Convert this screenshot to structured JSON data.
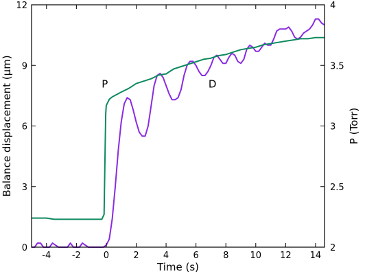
{
  "chart_data": {
    "type": "line",
    "title": "",
    "xlabel": "Time (s)",
    "ylabel": "Balance displacement (µm)",
    "y2label": "P (Torr)",
    "xlim": [
      -5,
      14.6
    ],
    "ylim": [
      0,
      12
    ],
    "y2lim": [
      2,
      4
    ],
    "x_ticks": [
      -4,
      -2,
      0,
      2,
      4,
      6,
      8,
      10,
      12,
      14
    ],
    "x_tick_labels": [
      "-4",
      "-2",
      "0",
      "2",
      "4",
      "6",
      "8",
      "10",
      "12",
      "14"
    ],
    "y_ticks": [
      0,
      3,
      6,
      9,
      12
    ],
    "y_tick_labels": [
      "0",
      "3",
      "6",
      "9",
      "12"
    ],
    "y2_ticks": [
      2,
      2.5,
      3,
      3.5,
      4
    ],
    "y2_tick_labels": [
      "2",
      "2.5",
      "3",
      "3.5",
      "4"
    ],
    "grid": false,
    "annotations": [
      {
        "text": "P",
        "x": -0.1,
        "y": 7.9
      },
      {
        "text": "D",
        "x": 7.1,
        "y": 7.9
      }
    ],
    "series": [
      {
        "name": "",
        "axis": "left",
        "color": "#8a2be2",
        "points": [
          [
            -5.0,
            0.0
          ],
          [
            -4.8,
            0.0
          ],
          [
            -4.6,
            0.2
          ],
          [
            -4.4,
            0.2
          ],
          [
            -4.2,
            0.0
          ],
          [
            -3.8,
            0.0
          ],
          [
            -3.6,
            0.2
          ],
          [
            -3.4,
            0.1
          ],
          [
            -3.2,
            0.0
          ],
          [
            -2.6,
            0.0
          ],
          [
            -2.4,
            0.2
          ],
          [
            -2.2,
            0.0
          ],
          [
            -1.8,
            0.0
          ],
          [
            -1.6,
            0.2
          ],
          [
            -1.4,
            0.1
          ],
          [
            -1.2,
            0.0
          ],
          [
            -0.4,
            0.0
          ],
          [
            -0.2,
            0.0
          ],
          [
            0.0,
            0.1
          ],
          [
            0.2,
            0.4
          ],
          [
            0.4,
            1.4
          ],
          [
            0.6,
            3.0
          ],
          [
            0.8,
            4.8
          ],
          [
            1.0,
            6.2
          ],
          [
            1.2,
            7.1
          ],
          [
            1.4,
            7.4
          ],
          [
            1.6,
            7.3
          ],
          [
            1.8,
            6.8
          ],
          [
            2.0,
            6.2
          ],
          [
            2.2,
            5.7
          ],
          [
            2.4,
            5.5
          ],
          [
            2.6,
            5.5
          ],
          [
            2.8,
            6.0
          ],
          [
            3.0,
            7.0
          ],
          [
            3.2,
            8.0
          ],
          [
            3.4,
            8.5
          ],
          [
            3.6,
            8.6
          ],
          [
            3.8,
            8.4
          ],
          [
            4.0,
            8.0
          ],
          [
            4.2,
            7.6
          ],
          [
            4.4,
            7.3
          ],
          [
            4.6,
            7.3
          ],
          [
            4.8,
            7.4
          ],
          [
            5.0,
            7.8
          ],
          [
            5.2,
            8.5
          ],
          [
            5.4,
            9.0
          ],
          [
            5.6,
            9.2
          ],
          [
            5.8,
            9.2
          ],
          [
            6.0,
            9.0
          ],
          [
            6.2,
            8.7
          ],
          [
            6.4,
            8.5
          ],
          [
            6.6,
            8.5
          ],
          [
            6.8,
            8.7
          ],
          [
            7.0,
            9.0
          ],
          [
            7.2,
            9.4
          ],
          [
            7.4,
            9.5
          ],
          [
            7.6,
            9.3
          ],
          [
            7.8,
            9.1
          ],
          [
            8.0,
            9.1
          ],
          [
            8.2,
            9.4
          ],
          [
            8.4,
            9.6
          ],
          [
            8.6,
            9.5
          ],
          [
            8.8,
            9.2
          ],
          [
            9.0,
            9.1
          ],
          [
            9.2,
            9.3
          ],
          [
            9.4,
            9.8
          ],
          [
            9.6,
            10.0
          ],
          [
            9.8,
            9.9
          ],
          [
            10.0,
            9.7
          ],
          [
            10.2,
            9.7
          ],
          [
            10.4,
            9.9
          ],
          [
            10.6,
            10.1
          ],
          [
            10.8,
            10.0
          ],
          [
            11.0,
            10.0
          ],
          [
            11.2,
            10.3
          ],
          [
            11.4,
            10.7
          ],
          [
            11.6,
            10.8
          ],
          [
            12.0,
            10.8
          ],
          [
            12.2,
            10.9
          ],
          [
            12.4,
            10.7
          ],
          [
            12.6,
            10.4
          ],
          [
            12.8,
            10.3
          ],
          [
            13.0,
            10.4
          ],
          [
            13.2,
            10.6
          ],
          [
            13.4,
            10.7
          ],
          [
            13.6,
            10.8
          ],
          [
            13.8,
            11.0
          ],
          [
            14.0,
            11.3
          ],
          [
            14.2,
            11.3
          ],
          [
            14.4,
            11.1
          ],
          [
            14.6,
            11.0
          ]
        ]
      },
      {
        "name": "",
        "axis": "right",
        "color": "#0e8a5f",
        "points": [
          [
            -5.0,
            2.24
          ],
          [
            -4.0,
            2.24
          ],
          [
            -3.5,
            2.23
          ],
          [
            -3.0,
            2.23
          ],
          [
            -2.0,
            2.23
          ],
          [
            -1.0,
            2.23
          ],
          [
            -0.3,
            2.23
          ],
          [
            -0.15,
            2.27
          ],
          [
            -0.08,
            2.8
          ],
          [
            -0.04,
            3.1
          ],
          [
            0.0,
            3.17
          ],
          [
            0.2,
            3.22
          ],
          [
            0.4,
            3.24
          ],
          [
            0.7,
            3.26
          ],
          [
            1.0,
            3.28
          ],
          [
            1.5,
            3.31
          ],
          [
            2.0,
            3.35
          ],
          [
            2.5,
            3.37
          ],
          [
            3.0,
            3.39
          ],
          [
            3.5,
            3.42
          ],
          [
            4.0,
            3.43
          ],
          [
            4.5,
            3.47
          ],
          [
            5.0,
            3.49
          ],
          [
            5.5,
            3.51
          ],
          [
            6.0,
            3.53
          ],
          [
            6.5,
            3.55
          ],
          [
            7.0,
            3.56
          ],
          [
            7.5,
            3.58
          ],
          [
            8.0,
            3.59
          ],
          [
            8.5,
            3.61
          ],
          [
            9.0,
            3.63
          ],
          [
            9.5,
            3.64
          ],
          [
            10.0,
            3.65
          ],
          [
            10.5,
            3.67
          ],
          [
            11.0,
            3.68
          ],
          [
            11.5,
            3.69
          ],
          [
            12.0,
            3.7
          ],
          [
            12.5,
            3.71
          ],
          [
            13.0,
            3.72
          ],
          [
            13.5,
            3.72
          ],
          [
            14.0,
            3.73
          ],
          [
            14.6,
            3.73
          ]
        ]
      }
    ]
  }
}
